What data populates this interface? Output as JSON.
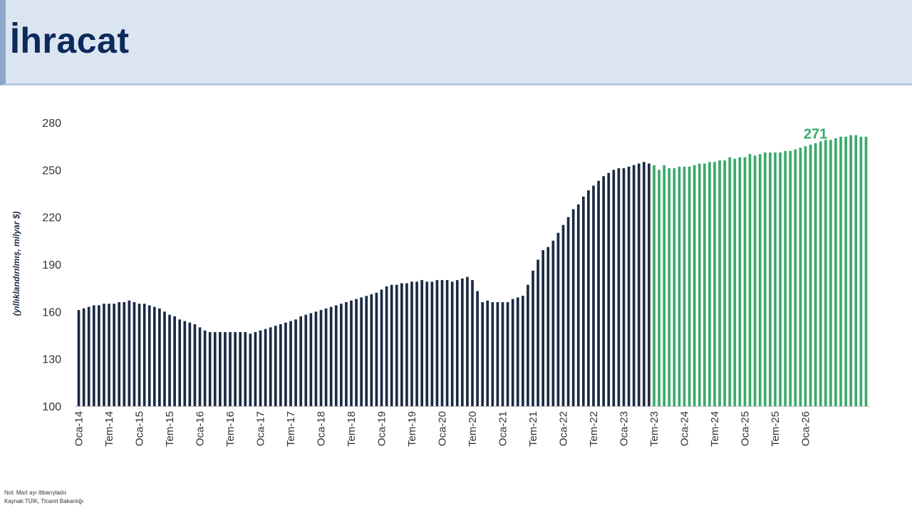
{
  "header": {
    "title": "İhracat"
  },
  "notes": {
    "note": "Not: Mart ayı itibarıyladır.",
    "source": "Kaynak:TÜİK, Ticaret Bakanlığı"
  },
  "colors": {
    "actual": "#1b2a44",
    "forecast": "#3aaa6a",
    "header_bg": "#dbe4f1",
    "title": "#0d2a5c"
  },
  "chart_data": {
    "type": "bar",
    "title": "",
    "ylabel": "(yıllıklandırılmış, milyar $)",
    "xlabel": "",
    "ylim": [
      100,
      280
    ],
    "yticks": [
      100,
      130,
      160,
      190,
      220,
      250,
      280
    ],
    "grid": false,
    "xtick_labels": [
      {
        "index": 0,
        "label": "Oca-14"
      },
      {
        "index": 6,
        "label": "Tem-14"
      },
      {
        "index": 12,
        "label": "Oca-15"
      },
      {
        "index": 18,
        "label": "Tem-15"
      },
      {
        "index": 24,
        "label": "Oca-16"
      },
      {
        "index": 30,
        "label": "Tem-16"
      },
      {
        "index": 36,
        "label": "Oca-17"
      },
      {
        "index": 42,
        "label": "Tem-17"
      },
      {
        "index": 48,
        "label": "Oca-18"
      },
      {
        "index": 54,
        "label": "Tem-18"
      },
      {
        "index": 60,
        "label": "Oca-19"
      },
      {
        "index": 66,
        "label": "Tem-19"
      },
      {
        "index": 72,
        "label": "Oca-20"
      },
      {
        "index": 78,
        "label": "Tem-20"
      },
      {
        "index": 84,
        "label": "Oca-21"
      },
      {
        "index": 90,
        "label": "Tem-21"
      },
      {
        "index": 96,
        "label": "Oca-22"
      },
      {
        "index": 102,
        "label": "Tem-22"
      },
      {
        "index": 108,
        "label": "Oca-23"
      },
      {
        "index": 114,
        "label": "Tem-23"
      },
      {
        "index": 120,
        "label": "Oca-24"
      },
      {
        "index": 126,
        "label": "Tem-24"
      },
      {
        "index": 132,
        "label": "Oca-25"
      },
      {
        "index": 138,
        "label": "Tem-25"
      },
      {
        "index": 144,
        "label": "Oca-26"
      }
    ],
    "forecast_start_index": 114,
    "annotation": {
      "text": "271",
      "index": 146
    },
    "series": [
      {
        "values": [
          161,
          162,
          163,
          164,
          164,
          165,
          165,
          165,
          166,
          166,
          167,
          166,
          165,
          165,
          164,
          163,
          162,
          160,
          158,
          157,
          155,
          154,
          153,
          152,
          150,
          148,
          147,
          147,
          147,
          147,
          147,
          147,
          147,
          147,
          146,
          147,
          148,
          149,
          150,
          151,
          152,
          153,
          154,
          155,
          157,
          158,
          159,
          160,
          161,
          162,
          163,
          164,
          165,
          166,
          167,
          168,
          169,
          170,
          171,
          172,
          174,
          176,
          177,
          177,
          178,
          178,
          179,
          179,
          180,
          179,
          179,
          180,
          180,
          180,
          179,
          180,
          181,
          182,
          180,
          173,
          166,
          167,
          166,
          166,
          166,
          166,
          168,
          169,
          170,
          177,
          186,
          193,
          199,
          201,
          205,
          210,
          215,
          220,
          225,
          228,
          233,
          237,
          240,
          243,
          246,
          248,
          250,
          251,
          251,
          252,
          253,
          254,
          255,
          254,
          253,
          250,
          253,
          251,
          251,
          252,
          252,
          252,
          253,
          254,
          254,
          255,
          255,
          256,
          256,
          258,
          257,
          258,
          258,
          260,
          259,
          260,
          261,
          261,
          261,
          261,
          262,
          262,
          263,
          264,
          265,
          266,
          267,
          268,
          269,
          269,
          270,
          271,
          271,
          272,
          272,
          271,
          271
        ]
      }
    ]
  }
}
